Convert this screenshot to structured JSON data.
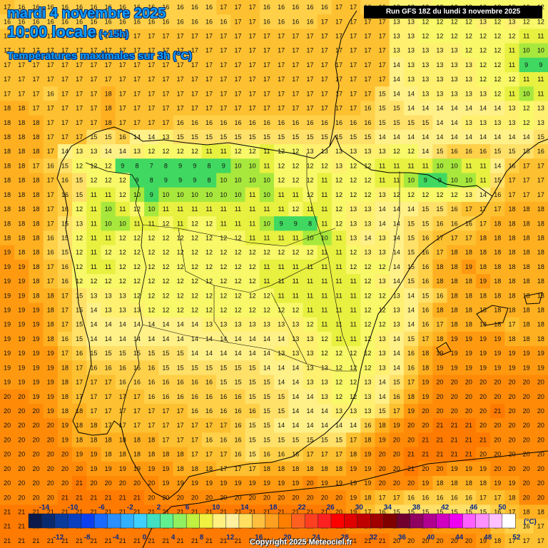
{
  "header": {
    "date": "mardi 4 novembre 2025",
    "time": "10:00 locale",
    "offset": "(+15h)",
    "parameter": "Températures maximales sur 3h (°C)",
    "run": "Run GFS 18Z du lundi 3 novembre 2025"
  },
  "footer": {
    "copyright": "Copyright 2025 Meteociel.fr"
  },
  "legend": {
    "unit": "(°C)",
    "top_labels": [
      "-14",
      "-10",
      "-6",
      "-2",
      "2",
      "6",
      "10",
      "14",
      "18",
      "22",
      "26",
      "30",
      "34",
      "38",
      "42",
      "46",
      "50"
    ],
    "bottom_labels": [
      "-12",
      "-8",
      "-4",
      "0",
      "4",
      "8",
      "12",
      "16",
      "20",
      "24",
      "28",
      "32",
      "36",
      "40",
      "44",
      "48",
      "52"
    ],
    "colors": [
      "#0b1a4a",
      "#0a2a70",
      "#0a3a9a",
      "#0a40c0",
      "#0a40f0",
      "#1a6aff",
      "#2a90ff",
      "#30b0ff",
      "#40d0ff",
      "#40e0c0",
      "#60f090",
      "#90f060",
      "#c0f040",
      "#f0f040",
      "#fff080",
      "#fff0a0",
      "#ffe060",
      "#ffc040",
      "#ffa020",
      "#ff8000",
      "#ff6020",
      "#ff4020",
      "#ff2020",
      "#ff0000",
      "#e00000",
      "#c00000",
      "#a00000",
      "#800000",
      "#700030",
      "#900060",
      "#b00090",
      "#d000c0",
      "#f000f0",
      "#ff60ff",
      "#ff90ff",
      "#ffc0ff",
      "#ffffff"
    ]
  },
  "map_data": {
    "region": "Péninsule Ibérique",
    "values": [
      "17 16 16 16 16 16 16 16 16 16 16 16 16 16 16 17 17 17 16 16 16 16 16 17 17 16 16 13 13 13 12 12 12 12 12 12 12 12",
      "16 16 16 16 16 16 16 16 16 16 16 16 16 16 16 16 17 17 16 16 16 16 17 17 17 17 17 13 13 12 12 12 12 13 12 13 12 12",
      "17 17 17 17 17 17 17 17 17 17 17 17 17 17 17 17 17 17 17 17 17 17 17 17 17 17 17 13 13 12 12 12 12 12 12 12 11 11",
      "17 17 17 17 17 17 17 17 17 17 17 17 17 17 17 17 17 17 17 17 17 17 17 17 17 17 17 13 13 13 13 13 12 12 12 11 10 10",
      "17 17 17 17 17 17 17 17 17 17 17 17 17 17 17 17 17 17 17 17 17 17 17 17 17 17 17 14 13 13 13 13 13 12 12 11 9 9",
      "17 17 17 17 17 17 17 17 17 17 17 17 17 17 17 17 17 17 17 17 17 17 17 17 17 17 17 14 13 13 13 13 13 12 12 12 11 11",
      "17 17 17 16 17 17 17 18 17 17 17 17 17 17 17 17 17 17 17 17 17 17 17 17 17 17 15 14 14 13 13 13 13 13 12 11 10 11",
      "18 18 17 17 17 17 17 18 17 17 17 17 17 17 17 17 17 17 17 17 17 17 17 17 17 16 15 15 14 14 14 14 14 14 14 13 12 13",
      "18 18 18 17 17 17 17 18 17 17 17 17 16 16 16 16 16 16 16 16 16 16 16 16 16 16 15 15 15 15 14 14 13 13 13 13 12 13",
      "18 18 18 17 17 17 15 15 16 14 14 13 15 15 15 15 15 15 15 15 15 15 15 15 15 15 14 14 14 14 14 14 14 14 14 14 14 15",
      "18 18 18 17 14 13 13 14 14 13 12 12 12 12 11 11 12 12 11 12 12 13 13 13 13 13 13 12 12 14 15 16 16 16 15 15 15 16",
      "18 18 17 16 15 12 12 12 9 8 7 8 9 9 8 9 10 10 11 12 12 12 12 13 12 12 11 11 11 11 10 10 11 11 14 16 17 17",
      "18 18 18 17 16 15 12 12 12 9 8 9 9 9 8 10 10 10 10 12 12 12 11 12 12 12 11 11 10 9 9 10 10 11 15 17 17 17",
      "18 18 18 17 16 15 11 11 12 10 9 10 10 10 10 10 10 11 10 11 11 12 11 12 12 12 13 12 12 12 12 12 13 14 16 17 17 17",
      "18 18 18 17 16 12 11 10 11 12 10 11 11 11 11 11 11 11 11 11 12 11 11 12 13 13 14 14 14 15 15 16 17 17 17 18 18 18",
      "18 18 18 17 15 13 11 10 10 11 11 12 11 12 12 11 11 11 10 9 9 8 11 12 13 13 14 14 15 15 16 16 16 17 18 18 18 18",
      "18 18 18 16 15 12 11 11 12 12 12 12 12 12 12 12 12 11 11 11 11 10 10 11 13 14 13 14 15 16 17 17 17 18 18 18 18 18",
      "19 18 18 16 15 12 11 12 12 12 12 12 12 12 12 12 12 12 12 12 12 12 11 11 12 13 13 14 15 16 17 18 18 18 18 18 18 18",
      "19 19 18 17 16 12 11 11 12 12 12 12 12 12 12 12 12 12 11 11 11 11 11 11 12 12 12 14 15 16 18 18 19 18 18 18 18 18",
      "19 19 18 17 16 12 12 12 12 12 12 12 12 12 12 12 12 12 11 11 11 11 11 11 11 12 13 14 15 16 18 18 18 19 18 18 18 18",
      "19 19 18 18 17 15 13 13 13 12 12 12 12 12 12 12 12 12 12 11 11 11 11 11 11 12 12 13 14 15 16 18 18 18 18 18 18 18",
      "19 19 19 18 17 15 14 13 13 13 12 12 12 12 12 12 12 12 12 12 12 11 11 11 11 12 12 13 14 16 18 18 18 18 18 18 18 18",
      "19 19 19 18 17 15 14 14 14 14 14 14 14 14 13 13 13 13 13 13 13 12 11 11 11 12 12 13 14 16 17 18 18 18 18 17 18 18",
      "19 19 19 18 16 15 14 14 14 14 14 14 14 14 14 14 14 14 14 14 13 13 12 11 11 12 13 14 15 17 18 19 19 19 19 18 18 18",
      "19 19 19 19 17 16 15 15 15 15 15 15 15 14 14 14 14 14 14 13 13 13 12 12 12 12 13 14 16 18 19 19 19 19 19 19 19 19",
      "19 19 19 19 18 17 16 16 16 16 16 15 15 15 15 15 15 15 14 14 14 13 13 12 12 12 13 14 16 18 19 19 19 19 19 19 19 19",
      "19 19 19 19 18 17 17 17 16 16 16 16 16 16 16 15 15 15 15 14 14 13 13 12 12 13 14 15 17 19 20 20 20 20 20 20 20 20",
      "20 20 19 19 18 17 17 17 17 17 16 16 16 16 16 16 16 15 15 15 14 14 13 12 12 13 14 16 18 19 20 20 20 20 20 20 20 20",
      "20 20 20 19 18 18 17 17 17 17 17 17 17 16 16 16 16 16 15 15 14 14 14 13 13 13 15 17 19 20 20 20 20 20 21 20 20 20",
      "20 20 20 20 19 18 18 17 17 17 17 17 17 17 17 17 16 15 15 14 14 14 14 14 14 16 18 19 20 20 21 21 21 20 20 20 20 20",
      "20 20 20 20 19 18 18 18 18 18 18 17 17 17 16 16 16 15 15 15 15 15 15 15 17 18 19 20 20 21 21 21 21 21 20 20 20 20",
      "20 20 20 20 20 19 19 18 18 18 18 18 18 17 17 17 16 15 16 16 16 17 17 17 18 19 20 20 21 21 21 21 21 20 20 20 20 20",
      "20 20 20 20 20 20 19 19 19 19 19 19 18 18 18 17 17 17 18 18 18 18 18 18 19 19 20 20 21 20 20 19 19 19 20 20 20 20",
      "20 20 20 20 20 21 20 20 20 20 20 19 19 19 19 19 19 19 19 19 19 20 19 19 19 19 20 20 20 19 18 18 18 18 19 19 20 20",
      "20 20 20 20 21 21 21 21 21 21 20 20 20 20 20 20 20 20 20 20 20 20 20 20 19 18 17 17 16 16 16 16 16 17 17 18 20 20",
      "21 21 21 21 21 21 21 21 21 21 21 21 21 21 21 21 21 21 21 21 21 21 21 20 19 17 16 15 15 15 15 15 15 15 16 17 18 18",
      "21 21 21 21 21 21 21 21 21 21 21 21 21 21 21 21 21 21 21 21 21 21 21 21 20 20 20 20 20 20 19 19 19 19 17 16 16 17",
      "21 21 21 21 21 21 21 21 21 21 21 21 21 21 21 21 21 21 21 21 21 21 21 21 21 21 21 20 20 20 20 20 20 19 18 17 17 17"
    ]
  },
  "colors": {
    "temp_9": "#40d860",
    "temp_10": "#a8e83c",
    "temp_11": "#e8f040",
    "temp_12": "#f8f868",
    "temp_13": "#fff070",
    "temp_14": "#fff088",
    "temp_15": "#ffe068",
    "temp_16": "#ffd048",
    "temp_17": "#fdc030",
    "temp_18": "#ffb020",
    "temp_19": "#ff9a10",
    "temp_20": "#ff8a08",
    "temp_21": "#ff7a00",
    "coastline": "#000000"
  }
}
